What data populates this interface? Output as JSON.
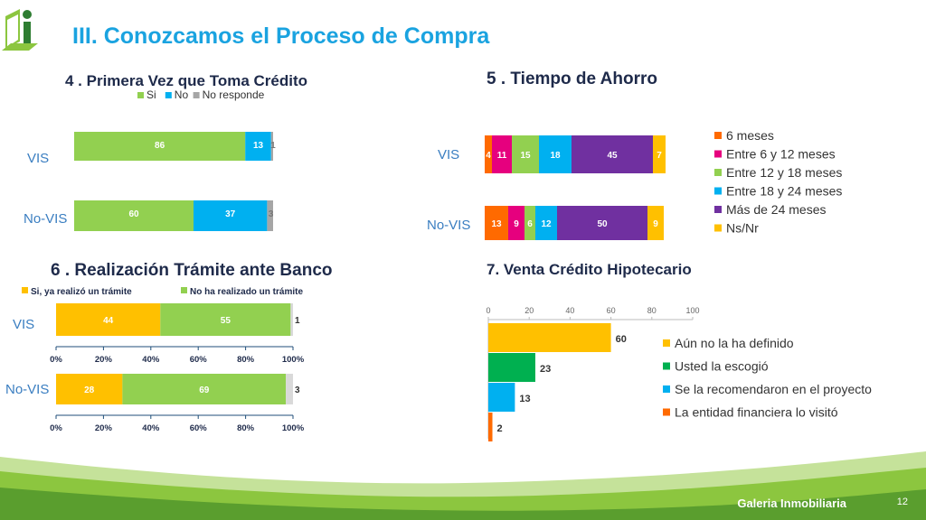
{
  "slide": {
    "title": "III.  Conozcamos el Proceso de Compra",
    "brand": "Galeria Inmobiliaria",
    "page": "12"
  },
  "colors": {
    "title_blue": "#1aa3e0",
    "dark_navy": "#1e2a4a",
    "green": "#92d050",
    "blue": "#00b0f0",
    "gray": "#a6a6a6",
    "orange": "#ff6a00",
    "magenta": "#e6007e",
    "light_green": "#92d050",
    "purple": "#7030a0",
    "yellow": "#ffc000",
    "dark_green": "#00b050",
    "category_blue": "#3a7ec1"
  },
  "chart_data": [
    {
      "id": "c4",
      "type": "bar",
      "orientation": "horizontal-stacked",
      "title": "4 .  Primera Vez que Toma Crédito",
      "categories": [
        "VIS",
        "No-VIS"
      ],
      "series": [
        {
          "name": "Si",
          "values": [
            86,
            60
          ],
          "color": "#92d050"
        },
        {
          "name": "No",
          "values": [
            13,
            37
          ],
          "color": "#00b0f0"
        },
        {
          "name": "No responde",
          "values": [
            1,
            3
          ],
          "color": "#a6a6a6"
        }
      ],
      "legend": "top"
    },
    {
      "id": "c5",
      "type": "bar",
      "orientation": "horizontal-stacked",
      "title": "5 .  Tiempo de Ahorro",
      "categories": [
        "VIS",
        "No-VIS"
      ],
      "series": [
        {
          "name": "6 meses",
          "values": [
            4,
            13
          ],
          "color": "#ff6a00"
        },
        {
          "name": "Entre 6 y 12 meses",
          "values": [
            11,
            9
          ],
          "color": "#e6007e"
        },
        {
          "name": "Entre 12 y 18 meses",
          "values": [
            15,
            6
          ],
          "color": "#92d050"
        },
        {
          "name": "Entre 18 y 24 meses",
          "values": [
            18,
            12
          ],
          "color": "#00b0f0"
        },
        {
          "name": "Más de 24 meses",
          "values": [
            45,
            50
          ],
          "color": "#7030a0"
        },
        {
          "name": "Ns/Nr",
          "values": [
            7,
            9
          ],
          "color": "#ffc000"
        }
      ],
      "legend": "right"
    },
    {
      "id": "c6",
      "type": "bar",
      "orientation": "horizontal-stacked",
      "title": "6 .  Realización Trámite ante Banco",
      "categories": [
        "VIS",
        "No-VIS"
      ],
      "series": [
        {
          "name": "Si, ya realizó un trámite",
          "values": [
            44,
            28
          ],
          "color": "#ffc000"
        },
        {
          "name": "No ha realizado un trámite",
          "values": [
            55,
            69
          ],
          "color": "#92d050"
        },
        {
          "name": "",
          "values": [
            1,
            3
          ],
          "color": "#d9d9d9"
        }
      ],
      "x_ticks": [
        "0%",
        "20%",
        "40%",
        "60%",
        "80%",
        "100%"
      ],
      "legend": "top"
    },
    {
      "id": "c7",
      "type": "bar",
      "orientation": "horizontal",
      "title": "7.  Venta Crédito Hipotecario",
      "categories": [
        "Aún no la ha definido",
        "Usted la escogió",
        "Se la recomendaron en el proyecto",
        "La entidad financiera lo visitó"
      ],
      "values": [
        60,
        23,
        13,
        2
      ],
      "colors": [
        "#ffc000",
        "#00b050",
        "#00b0f0",
        "#ff6a00"
      ],
      "xlim": [
        0,
        100
      ],
      "x_ticks": [
        "0",
        "20",
        "40",
        "60",
        "80",
        "100"
      ],
      "legend": "right"
    }
  ]
}
